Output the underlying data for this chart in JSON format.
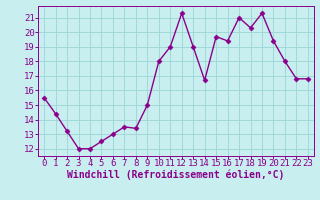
{
  "x": [
    0,
    1,
    2,
    3,
    4,
    5,
    6,
    7,
    8,
    9,
    10,
    11,
    12,
    13,
    14,
    15,
    16,
    17,
    18,
    19,
    20,
    21,
    22,
    23
  ],
  "y": [
    15.5,
    14.4,
    13.2,
    12.0,
    12.0,
    12.5,
    13.0,
    13.5,
    13.4,
    15.0,
    18.0,
    19.0,
    21.3,
    19.0,
    16.7,
    19.7,
    19.4,
    21.0,
    20.3,
    21.3,
    19.4,
    18.0,
    16.8,
    16.8
  ],
  "line_color": "#8b008b",
  "marker": "D",
  "marker_size": 2.5,
  "bg_color": "#c8eef0",
  "grid_color": "#a0d8d8",
  "xlabel": "Windchill (Refroidissement éolien,°C)",
  "xlabel_color": "#8b008b",
  "tick_color": "#8b008b",
  "spine_color": "#8b008b",
  "ylim": [
    11.5,
    21.8
  ],
  "xlim": [
    -0.5,
    23.5
  ],
  "yticks": [
    12,
    13,
    14,
    15,
    16,
    17,
    18,
    19,
    20,
    21
  ],
  "xticks": [
    0,
    1,
    2,
    3,
    4,
    5,
    6,
    7,
    8,
    9,
    10,
    11,
    12,
    13,
    14,
    15,
    16,
    17,
    18,
    19,
    20,
    21,
    22,
    23
  ],
  "tick_font_size": 6.5,
  "xlabel_font_size": 7.0
}
